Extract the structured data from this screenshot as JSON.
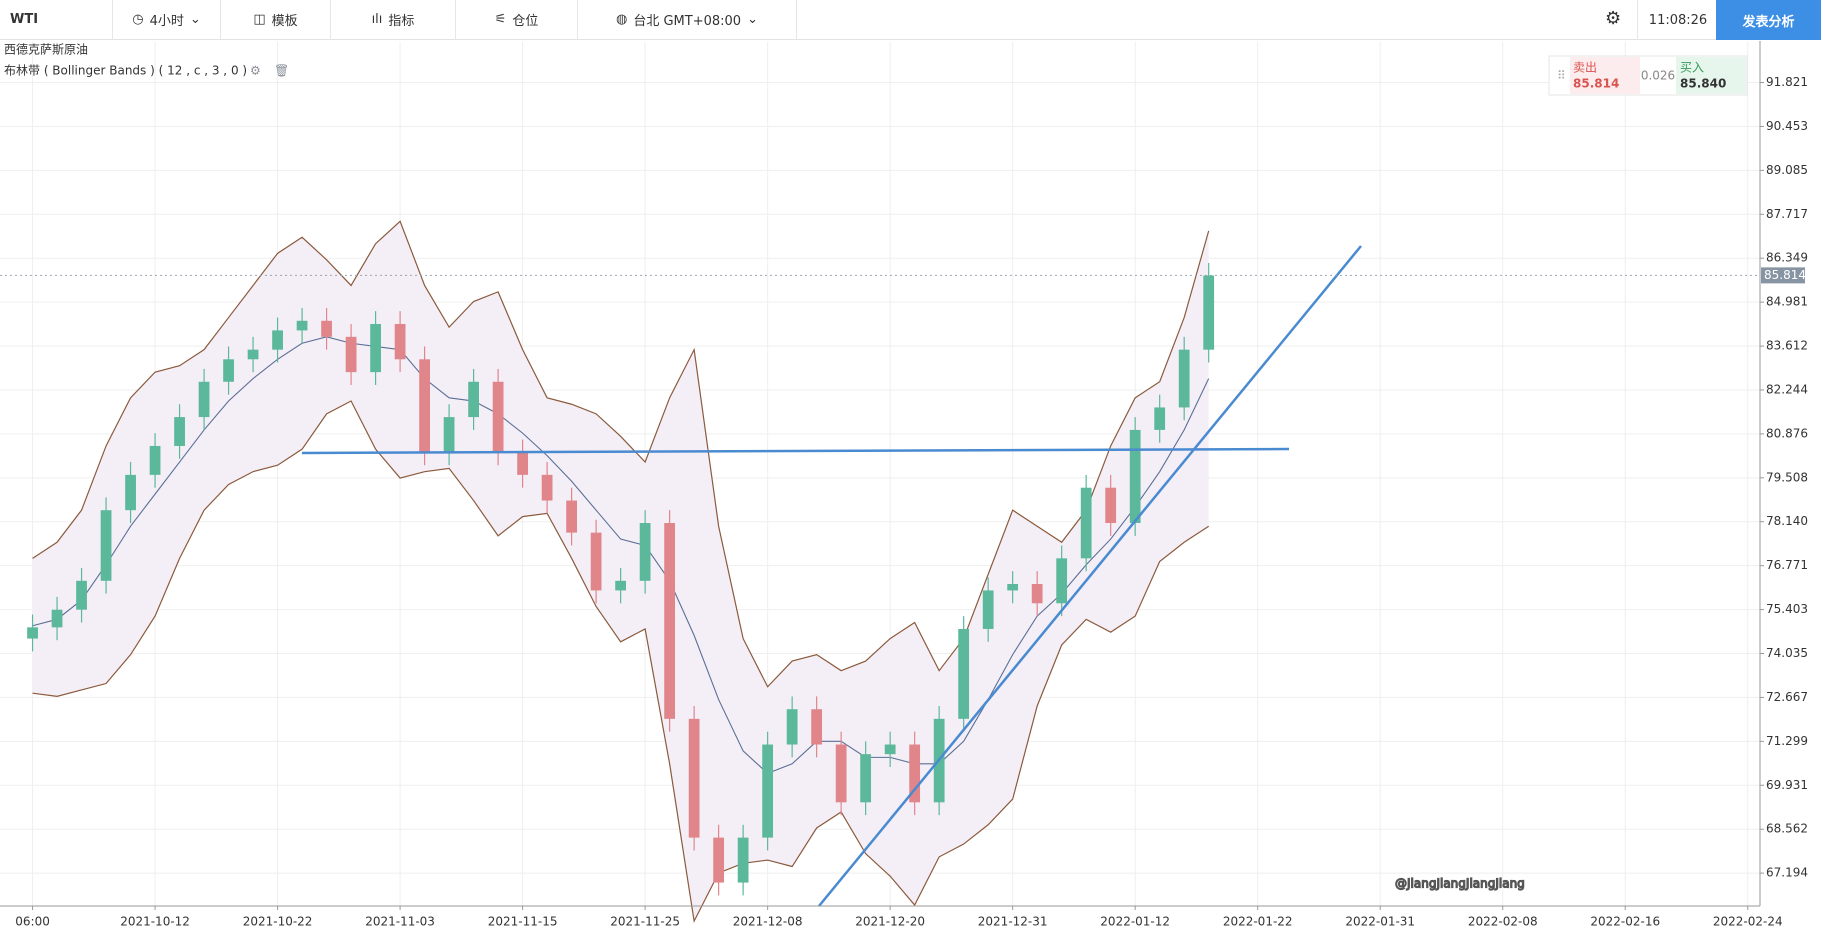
{
  "toolbar": {
    "symbol": "WTI",
    "interval": "4小时",
    "template": "模板",
    "indicators": "指标",
    "positions": "仓位",
    "timezone": "台北 GMT+08:00",
    "clock": "11:08:26",
    "publish": "发表分析"
  },
  "trade_box": {
    "sell_label": "卖出",
    "sell_price": "85.814",
    "spread": "0.026",
    "buy_label": "买入",
    "buy_price": "85.840"
  },
  "watermark": "@JiangJiangJiangJiang",
  "chart_data": {
    "type": "candlestick",
    "title": "西德克萨斯原油",
    "indicator": "布林带 ( Bollinger Bands )  ( 12 , c , 3 , 0 )",
    "categories": [
      "06:00",
      null,
      null,
      null,
      null,
      "2021-10-12",
      null,
      null,
      null,
      null,
      "2021-10-22",
      null,
      null,
      null,
      null,
      "2021-11-03",
      null,
      null,
      null,
      null,
      "2021-11-15",
      null,
      null,
      null,
      null,
      "2021-11-25",
      null,
      null,
      null,
      null,
      "2021-12-08",
      null,
      null,
      null,
      null,
      "2021-12-20",
      null,
      null,
      null,
      null,
      "2021-12-31",
      null,
      null,
      null,
      null,
      "2022-01-12",
      null,
      null,
      null,
      null,
      "2022-01-22",
      null,
      null,
      null,
      null,
      "2022-01-31",
      null,
      null,
      null,
      null,
      "2022-02-08",
      null,
      null,
      null,
      null,
      "2022-02-16",
      null,
      null,
      null,
      null,
      "2022-02-24"
    ],
    "open": [
      74.5,
      74.85,
      75.4,
      76.3,
      78.5,
      79.6,
      80.5,
      81.4,
      82.5,
      83.2,
      83.5,
      84.1,
      84.4,
      83.9,
      82.8,
      84.3,
      83.2,
      80.3,
      81.4,
      82.5,
      80.3,
      79.6,
      78.8,
      77.8,
      76.0,
      76.3,
      78.1,
      72.0,
      68.3,
      66.9,
      68.3,
      71.2,
      72.3,
      71.2,
      69.4,
      70.9,
      71.2,
      69.4,
      72.0,
      74.8,
      76.0,
      76.2,
      75.6,
      77.0,
      79.2,
      78.1,
      81.0,
      81.7,
      83.5,
      null,
      null,
      null,
      null,
      null,
      null,
      null,
      null,
      null,
      null,
      null,
      null,
      null,
      null,
      null,
      null,
      null,
      null,
      null,
      null,
      null,
      null
    ],
    "high": [
      75.25,
      75.8,
      76.7,
      78.9,
      80.0,
      80.9,
      81.8,
      82.9,
      83.6,
      83.9,
      84.5,
      84.8,
      84.8,
      84.3,
      84.7,
      84.7,
      83.6,
      81.8,
      82.9,
      82.9,
      80.7,
      80.0,
      79.2,
      78.2,
      76.7,
      78.5,
      78.5,
      72.4,
      68.7,
      68.7,
      71.6,
      72.7,
      72.7,
      71.6,
      71.3,
      71.6,
      71.6,
      72.4,
      75.2,
      76.4,
      76.6,
      76.6,
      77.4,
      79.6,
      79.6,
      81.4,
      82.1,
      83.9,
      86.2,
      null,
      null,
      null,
      null,
      null,
      null,
      null,
      null,
      null,
      null,
      null,
      null,
      null,
      null,
      null,
      null,
      null,
      null,
      null,
      null,
      null,
      null
    ],
    "low": [
      74.1,
      74.45,
      75.0,
      75.9,
      78.1,
      79.2,
      80.1,
      81.0,
      82.1,
      82.8,
      83.1,
      83.7,
      83.5,
      82.4,
      82.4,
      82.8,
      79.9,
      79.9,
      81.0,
      79.9,
      79.2,
      78.4,
      77.4,
      75.6,
      75.6,
      75.9,
      71.6,
      67.9,
      66.5,
      66.5,
      67.9,
      70.8,
      70.8,
      69.0,
      69.0,
      70.5,
      69.0,
      69.0,
      71.6,
      74.4,
      75.6,
      75.2,
      75.2,
      76.6,
      77.7,
      77.7,
      80.6,
      81.3,
      83.1,
      null,
      null,
      null,
      null,
      null,
      null,
      null,
      null,
      null,
      null,
      null,
      null,
      null,
      null,
      null,
      null,
      null,
      null,
      null,
      null,
      null,
      null
    ],
    "close": [
      74.85,
      75.4,
      76.3,
      78.5,
      79.6,
      80.5,
      81.4,
      82.5,
      83.2,
      83.5,
      84.1,
      84.4,
      83.9,
      82.8,
      84.3,
      83.2,
      80.3,
      81.4,
      82.5,
      80.3,
      79.6,
      78.8,
      77.8,
      76.0,
      76.3,
      78.1,
      72.0,
      68.3,
      66.9,
      68.3,
      71.2,
      72.3,
      71.2,
      69.4,
      70.9,
      71.2,
      69.4,
      72.0,
      74.8,
      76.0,
      76.2,
      75.6,
      77.0,
      79.2,
      78.1,
      81.0,
      81.7,
      83.5,
      85.81,
      null,
      null,
      null,
      null,
      null,
      null,
      null,
      null,
      null,
      null,
      null,
      null,
      null,
      null,
      null,
      null,
      null,
      null,
      null,
      null,
      null,
      null
    ],
    "bands": {
      "upper": [
        77.0,
        77.5,
        78.5,
        80.5,
        82.0,
        82.8,
        83.0,
        83.5,
        84.5,
        85.5,
        86.5,
        87.0,
        86.3,
        85.5,
        86.8,
        87.5,
        85.5,
        84.2,
        85.0,
        85.3,
        83.5,
        82.0,
        81.8,
        81.5,
        80.8,
        80.0,
        82.0,
        83.5,
        78.0,
        74.5,
        73.0,
        73.8,
        74.0,
        73.5,
        73.8,
        74.5,
        75.0,
        73.5,
        74.5,
        76.5,
        78.5,
        78.0,
        77.5,
        78.5,
        80.5,
        82.0,
        82.5,
        84.5,
        87.2,
        null,
        null,
        null,
        null,
        null,
        null,
        null,
        null,
        null,
        null,
        null,
        null,
        null,
        null,
        null,
        null,
        null,
        null,
        null,
        null,
        null,
        null
      ],
      "middle": [
        74.9,
        75.1,
        75.7,
        76.8,
        78.0,
        79.0,
        80.0,
        81.0,
        81.9,
        82.6,
        83.2,
        83.7,
        83.9,
        83.7,
        83.6,
        83.5,
        82.6,
        82.0,
        81.9,
        81.5,
        80.9,
        80.2,
        79.4,
        78.5,
        77.6,
        77.4,
        76.3,
        74.6,
        72.6,
        71.0,
        70.3,
        70.6,
        71.3,
        71.3,
        70.8,
        70.8,
        70.6,
        70.6,
        71.3,
        72.6,
        74.0,
        75.2,
        75.9,
        76.8,
        77.6,
        78.6,
        79.7,
        81.0,
        82.6,
        null,
        null,
        null,
        null,
        null,
        null,
        null,
        null,
        null,
        null,
        null,
        null,
        null,
        null,
        null,
        null,
        null,
        null,
        null,
        null,
        null,
        null
      ],
      "lower": [
        72.8,
        72.7,
        72.9,
        73.1,
        74.0,
        75.2,
        77.0,
        78.5,
        79.3,
        79.7,
        79.9,
        80.4,
        81.5,
        81.9,
        80.4,
        79.5,
        79.7,
        79.8,
        78.8,
        77.7,
        78.3,
        78.4,
        77.0,
        75.5,
        74.4,
        74.8,
        70.6,
        65.7,
        67.2,
        67.5,
        67.6,
        67.4,
        68.6,
        69.1,
        67.8,
        67.1,
        66.2,
        67.7,
        68.1,
        68.7,
        69.5,
        72.4,
        74.3,
        75.1,
        74.7,
        75.2,
        76.9,
        77.5,
        78.0,
        null,
        null,
        null,
        null,
        null,
        null,
        null,
        null,
        null,
        null,
        null,
        null,
        null,
        null,
        null,
        null,
        null,
        null,
        null,
        null,
        null,
        null
      ]
    },
    "up_color": "#5cb89b",
    "down_color": "#e0868a",
    "band_color": "#8b5a3c",
    "middle_color": "#5b6f95",
    "band_fill": "#f4eff7",
    "last_price": {
      "value": 85.814,
      "label": "85.814"
    },
    "ylim": [
      66.17,
      93.09
    ],
    "yticks": [
      91.821,
      90.453,
      89.085,
      87.717,
      86.349,
      84.981,
      83.612,
      82.244,
      80.876,
      79.508,
      {
        "value": 78.14,
        "label": "78.140"
      },
      76.771,
      75.403,
      74.035,
      72.667,
      71.299,
      69.931,
      68.562,
      67.194
    ],
    "grid": true
  }
}
